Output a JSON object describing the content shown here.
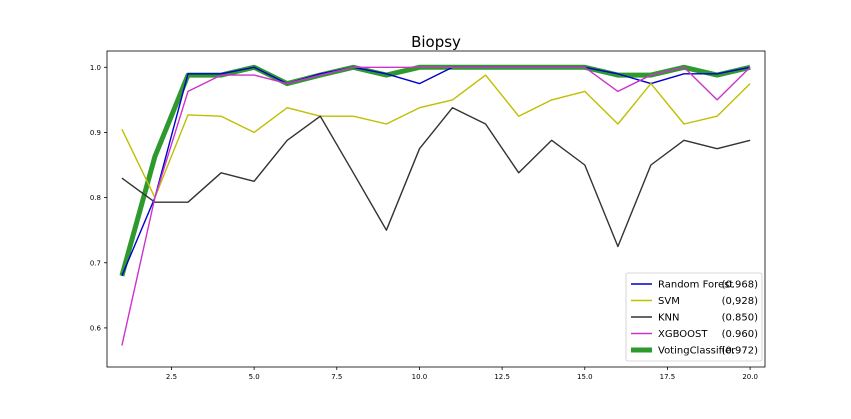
{
  "chart_data": {
    "type": "line",
    "title": "Biopsy",
    "xlabel": "",
    "ylabel": "",
    "xlim": [
      0.55,
      20.45
    ],
    "ylim": [
      0.54,
      1.025
    ],
    "xticks": [
      2.5,
      5.0,
      7.5,
      10.0,
      12.5,
      15.0,
      17.5,
      20.0
    ],
    "xtick_labels": [
      "2.5",
      "5.0",
      "7.5",
      "10.0",
      "12.5",
      "15.0",
      "17.5",
      "20.0"
    ],
    "yticks": [
      0.6,
      0.7,
      0.8,
      0.9,
      1.0
    ],
    "ytick_labels": [
      "0.6",
      "0.7",
      "0.8",
      "0.9",
      "1.0"
    ],
    "grid": false,
    "legend_position": "bottom-right",
    "x": [
      1,
      2,
      3,
      4,
      5,
      6,
      7,
      8,
      9,
      10,
      11,
      12,
      13,
      14,
      15,
      16,
      17,
      18,
      19,
      20
    ],
    "series": [
      {
        "name": "Random Forest",
        "score": "(0.968)",
        "color": "#0000cc",
        "width": 1.4,
        "values": [
          0.68,
          0.8,
          0.99,
          0.99,
          1.0,
          0.975,
          0.99,
          1.0,
          0.99,
          0.975,
          1.0,
          1.0,
          1.0,
          1.0,
          1.0,
          0.99,
          0.975,
          0.99,
          0.99,
          1.0
        ]
      },
      {
        "name": "SVM",
        "score": "(0,928)",
        "color": "#bfbf00",
        "width": 1.4,
        "values": [
          0.905,
          0.8,
          0.927,
          0.925,
          0.9,
          0.938,
          0.925,
          0.925,
          0.913,
          0.938,
          0.95,
          0.988,
          0.925,
          0.95,
          0.963,
          0.913,
          0.975,
          0.913,
          0.925,
          0.975
        ]
      },
      {
        "name": "KNN",
        "score": "(0.850)",
        "color": "#333333",
        "width": 1.4,
        "values": [
          0.83,
          0.793,
          0.793,
          0.838,
          0.825,
          0.888,
          0.925,
          0.838,
          0.75,
          0.875,
          0.938,
          0.913,
          0.838,
          0.888,
          0.85,
          0.725,
          0.85,
          0.888,
          0.875,
          0.888
        ]
      },
      {
        "name": "XGBOOST",
        "score": "(0.960)",
        "color": "#cc33cc",
        "width": 1.4,
        "values": [
          0.573,
          0.8,
          0.963,
          0.988,
          0.988,
          0.975,
          0.988,
          1.0,
          1.0,
          1.0,
          1.0,
          1.0,
          1.0,
          1.0,
          1.0,
          0.963,
          0.988,
          1.0,
          0.95,
          1.0
        ]
      },
      {
        "name": "VotingClassifier",
        "score": "(0.972)",
        "color": "#2e9a2e",
        "width": 5,
        "values": [
          0.68,
          0.863,
          0.988,
          0.988,
          1.0,
          0.975,
          0.988,
          1.0,
          0.988,
          1.0,
          1.0,
          1.0,
          1.0,
          1.0,
          1.0,
          0.988,
          0.988,
          1.0,
          0.988,
          1.0
        ]
      }
    ]
  }
}
